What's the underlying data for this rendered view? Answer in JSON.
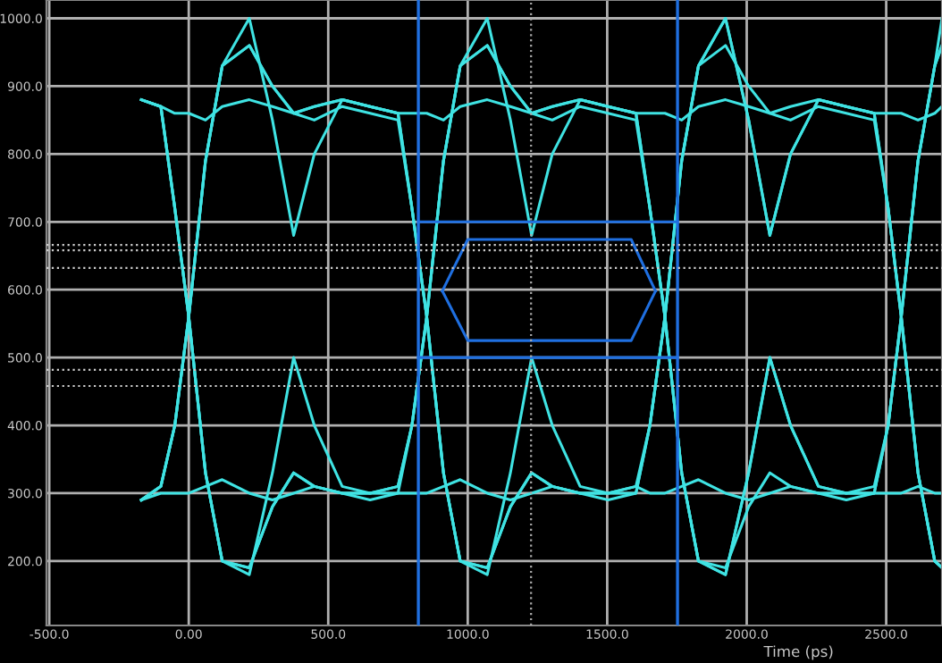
{
  "chart_data": {
    "type": "line",
    "xlabel": "Time (ps)",
    "xlim": [
      -510,
      2700
    ],
    "ylim": [
      105,
      1027
    ],
    "xticks": [
      {
        "value": -500,
        "label": "-500.0"
      },
      {
        "value": 0,
        "label": "0.00"
      },
      {
        "value": 500,
        "label": "500.0"
      },
      {
        "value": 1000,
        "label": "1000.0"
      },
      {
        "value": 1500,
        "label": "1500.0"
      },
      {
        "value": 2000,
        "label": "2000.0"
      },
      {
        "value": 2500,
        "label": "2500.0"
      }
    ],
    "yticks": [
      {
        "value": 200,
        "label": "200.0"
      },
      {
        "value": 300,
        "label": "300.0"
      },
      {
        "value": 400,
        "label": "400.0"
      },
      {
        "value": 500,
        "label": "500.0"
      },
      {
        "value": 600,
        "label": "600.0"
      },
      {
        "value": 700,
        "label": "700.0"
      },
      {
        "value": 800,
        "label": "800.0"
      },
      {
        "value": 900,
        "label": "900.0"
      },
      {
        "value": 1000,
        "label": "1000.0"
      }
    ],
    "grid": true,
    "legend": false,
    "marker": "none",
    "line_style": "solid",
    "x": [
      -170,
      -100,
      -50,
      0,
      60,
      120,
      217,
      300,
      376,
      450,
      550,
      650,
      750,
      800,
      853,
      913,
      973,
      1070,
      1153,
      1229,
      1303,
      1403,
      1503,
      1603,
      1653,
      1707,
      1767,
      1827,
      1924,
      2007,
      2083,
      2157,
      2257,
      2357,
      2457,
      2507,
      2554,
      2614,
      2674,
      2700
    ],
    "series": [
      {
        "color": "#3fe3e3",
        "values": [
          880,
          870,
          720,
          560,
          330,
          200,
          190,
          280,
          330,
          310,
          300,
          300,
          310,
          400,
          560,
          790,
          930,
          1000,
          850,
          680,
          800,
          880,
          870,
          860,
          720,
          560,
          330,
          200,
          190,
          280,
          330,
          310,
          300,
          300,
          310,
          400,
          560,
          790,
          930,
          960
        ]
      },
      {
        "color": "#3fe3e3",
        "values": [
          290,
          310,
          400,
          560,
          790,
          930,
          960,
          900,
          860,
          870,
          880,
          870,
          860,
          720,
          560,
          330,
          200,
          180,
          330,
          500,
          400,
          310,
          300,
          300,
          400,
          560,
          790,
          930,
          960,
          900,
          860,
          870,
          880,
          870,
          860,
          720,
          560,
          330,
          200,
          190
        ]
      },
      {
        "color": "#3fe3e3",
        "values": [
          880,
          870,
          860,
          860,
          850,
          870,
          880,
          870,
          860,
          850,
          870,
          860,
          850,
          720,
          560,
          330,
          200,
          190,
          280,
          330,
          310,
          300,
          300,
          310,
          300,
          300,
          310,
          320,
          300,
          290,
          300,
          310,
          300,
          290,
          300,
          400,
          560,
          790,
          930,
          960
        ]
      },
      {
        "color": "#3fe3e3",
        "values": [
          290,
          300,
          300,
          300,
          310,
          320,
          300,
          290,
          300,
          310,
          300,
          290,
          300,
          400,
          560,
          790,
          930,
          960,
          900,
          860,
          870,
          880,
          870,
          860,
          860,
          860,
          850,
          870,
          880,
          870,
          860,
          850,
          870,
          860,
          850,
          720,
          560,
          330,
          200,
          190
        ]
      },
      {
        "color": "#3fe3e3",
        "values": [
          880,
          870,
          720,
          560,
          330,
          200,
          180,
          330,
          500,
          400,
          310,
          300,
          300,
          300,
          300,
          310,
          320,
          300,
          290,
          300,
          310,
          300,
          290,
          300,
          400,
          560,
          790,
          930,
          1000,
          850,
          680,
          800,
          880,
          870,
          860,
          860,
          860,
          850,
          860,
          870
        ]
      },
      {
        "color": "#3fe3e3",
        "values": [
          290,
          310,
          400,
          560,
          790,
          930,
          1000,
          850,
          680,
          800,
          880,
          870,
          860,
          860,
          860,
          850,
          870,
          880,
          870,
          860,
          850,
          870,
          860,
          850,
          720,
          560,
          330,
          200,
          180,
          330,
          500,
          400,
          310,
          300,
          300,
          300,
          300,
          310,
          300,
          300
        ]
      },
      {
        "color": "#3fe3e3",
        "values": [
          880,
          870,
          720,
          560,
          330,
          200,
          190,
          280,
          330,
          310,
          300,
          300,
          310,
          400,
          560,
          790,
          930,
          960,
          900,
          860,
          870,
          880,
          870,
          860,
          720,
          560,
          330,
          200,
          180,
          330,
          500,
          400,
          310,
          300,
          300,
          400,
          560,
          790,
          930,
          1000
        ]
      },
      {
        "color": "#3fe3e3",
        "values": [
          290,
          310,
          400,
          560,
          790,
          930,
          960,
          900,
          860,
          870,
          880,
          870,
          860,
          720,
          560,
          330,
          200,
          190,
          280,
          330,
          310,
          300,
          300,
          310,
          400,
          560,
          790,
          930,
          1000,
          850,
          680,
          800,
          880,
          870,
          860,
          720,
          560,
          330,
          200,
          190
        ]
      },
      {
        "color": "#1f6fe0",
        "x": [
          909,
          1000,
          1586,
          1673
        ],
        "values": [
          598,
          674,
          674,
          598
        ]
      },
      {
        "color": "#1f6fe0",
        "x": [
          909,
          1000,
          1586,
          1673
        ],
        "values": [
          598,
          525,
          525,
          598
        ]
      },
      {
        "color": "#1f6fe0",
        "x": [
          823,
          1752
        ],
        "values": [
          700,
          700
        ]
      },
      {
        "color": "#1f6fe0",
        "x": [
          823,
          1752
        ],
        "values": [
          500,
          500
        ]
      }
    ],
    "ref_lines": [
      {
        "axis": "x",
        "value": 823,
        "color": "#1f6fe0",
        "line_style": "solid"
      },
      {
        "axis": "x",
        "value": 1752,
        "color": "#1f6fe0",
        "line_style": "solid"
      },
      {
        "axis": "x",
        "value": 1227,
        "color": "#aaaaaa",
        "line_style": "dotted"
      },
      {
        "axis": "y",
        "value": 666,
        "color": "#cccccc",
        "line_style": "dotted"
      },
      {
        "axis": "y",
        "value": 658,
        "color": "#cccccc",
        "line_style": "dotted"
      },
      {
        "axis": "y",
        "value": 632,
        "color": "#cccccc",
        "line_style": "dotted"
      },
      {
        "axis": "y",
        "value": 482,
        "color": "#cccccc",
        "line_style": "dotted"
      },
      {
        "axis": "y",
        "value": 458,
        "color": "#cccccc",
        "line_style": "dotted"
      }
    ]
  }
}
